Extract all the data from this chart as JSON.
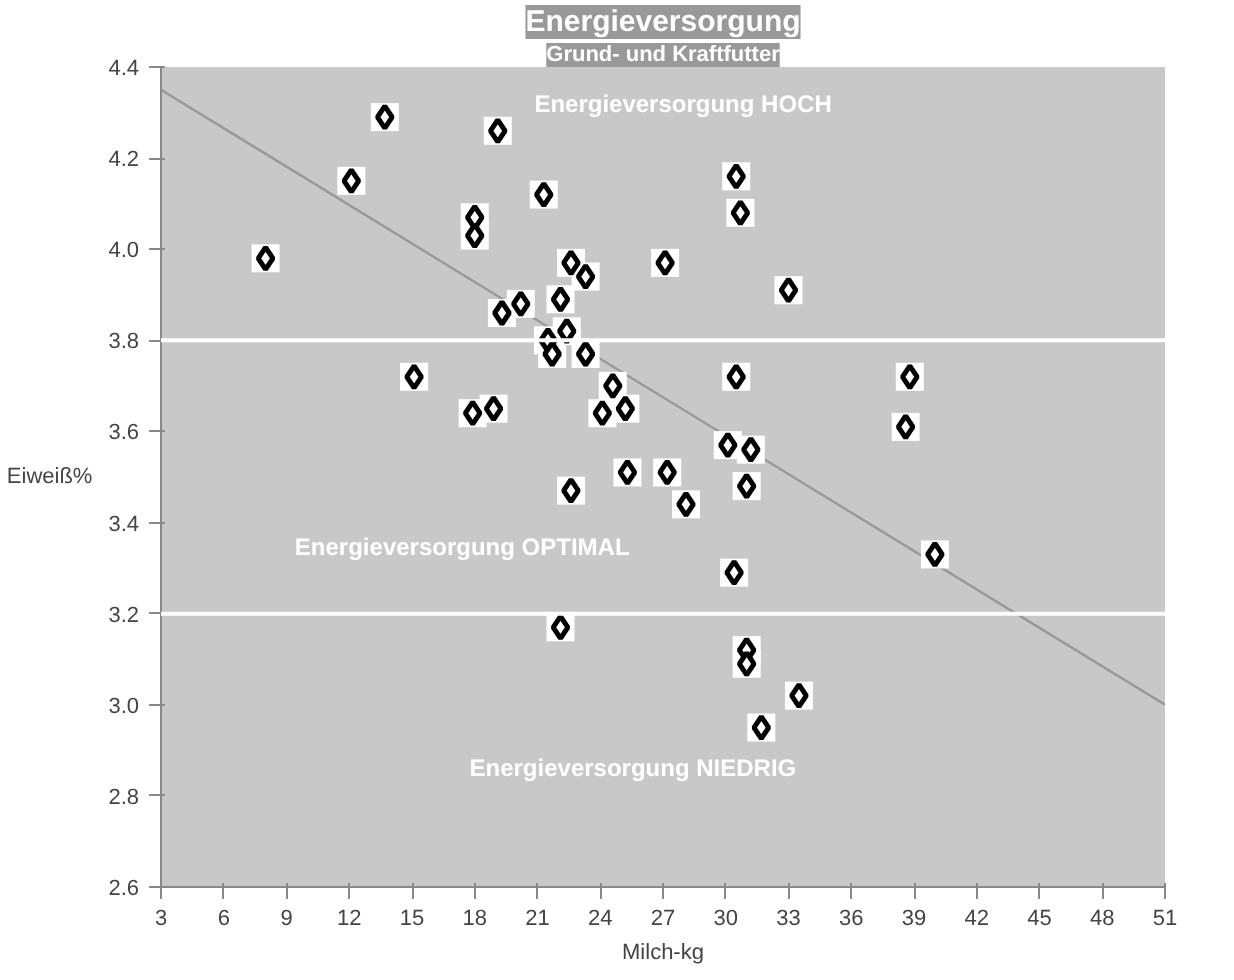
{
  "chart_data": {
    "type": "scatter",
    "title": "Energieversorgung",
    "subtitle": "Grund- und Kraftfutter",
    "xlabel": "Milch-kg",
    "ylabel": "Eiweiß%",
    "series": [
      {
        "color": "#000000",
        "marker": "diamond",
        "x": [
          8.0,
          13.7,
          12.1,
          19.1,
          21.3,
          18.0,
          18.0,
          15.1,
          18.9,
          17.9,
          19.3,
          20.2,
          22.1,
          22.6,
          23.3,
          21.5,
          22.4,
          21.7,
          23.3,
          24.6,
          24.1,
          25.2,
          22.6,
          25.3,
          27.2,
          27.1,
          28.1,
          30.5,
          30.7,
          33.0,
          30.5,
          38.8,
          38.6,
          30.1,
          31.2,
          31.0,
          40.0,
          30.4,
          22.1,
          31.0,
          31.7,
          33.5,
          31.0
        ],
        "values": [
          3.98,
          4.29,
          4.15,
          4.26,
          4.12,
          4.07,
          4.03,
          3.72,
          3.65,
          3.64,
          3.86,
          3.88,
          3.89,
          3.97,
          3.94,
          3.8,
          3.82,
          3.77,
          3.77,
          3.7,
          3.64,
          3.65,
          3.47,
          3.51,
          3.51,
          3.97,
          3.44,
          4.16,
          4.08,
          3.91,
          3.72,
          3.72,
          3.61,
          3.57,
          3.56,
          3.48,
          3.33,
          3.29,
          3.17,
          3.12,
          2.95,
          3.02,
          3.09
        ]
      },
      {
        "type": "line",
        "color": "#999999",
        "x": [
          3,
          51
        ],
        "values": [
          4.35,
          3.0
        ]
      }
    ],
    "ref_lines": [
      {
        "axis": "y",
        "value": 3.8,
        "color": "#ffffff"
      },
      {
        "axis": "y",
        "value": 3.2,
        "color": "#ffffff"
      }
    ],
    "annotations": [
      "Energieversorgung HOCH",
      "Energieversorgung OPTIMAL",
      "Energieversorgung NIEDRIG"
    ],
    "xlim": [
      3,
      51
    ],
    "ylim": [
      2.6,
      4.4
    ],
    "xticks": [
      3,
      6,
      9,
      12,
      15,
      18,
      21,
      24,
      27,
      30,
      33,
      36,
      39,
      42,
      45,
      48,
      51
    ],
    "yticks": [
      {
        "value": 2.6,
        "label": "2.6"
      },
      {
        "value": 2.8,
        "label": "2.8"
      },
      {
        "value": 3.0,
        "label": "3.0"
      },
      {
        "value": 3.2,
        "label": "3.2"
      },
      {
        "value": 3.4,
        "label": "3.4"
      },
      {
        "value": 3.6,
        "label": "3.6"
      },
      {
        "value": 3.8,
        "label": "3.8"
      },
      {
        "value": 4.0,
        "label": "4.0"
      },
      {
        "value": 4.2,
        "label": "4.2"
      },
      {
        "value": 4.4,
        "label": "4.4"
      }
    ],
    "grid": false
  }
}
